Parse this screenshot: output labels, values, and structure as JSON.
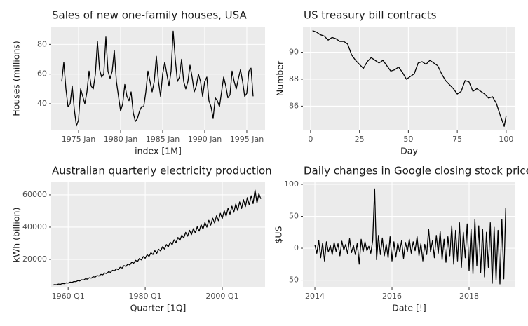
{
  "chart_data": [
    {
      "type": "line",
      "title": "Sales of new one-family houses, USA",
      "xlabel": "index [1M]",
      "ylabel": "Houses (millions)",
      "color": "#000000",
      "grid": true,
      "x": [
        1973,
        1973.25,
        1973.5,
        1973.75,
        1974,
        1974.25,
        1974.5,
        1974.75,
        1975,
        1975.25,
        1975.5,
        1975.75,
        1976,
        1976.25,
        1976.5,
        1976.75,
        1977,
        1977.25,
        1977.5,
        1977.75,
        1978,
        1978.25,
        1978.5,
        1978.75,
        1979,
        1979.25,
        1979.5,
        1979.75,
        1980,
        1980.25,
        1980.5,
        1980.75,
        1981,
        1981.25,
        1981.5,
        1981.75,
        1982,
        1982.25,
        1982.5,
        1982.75,
        1983,
        1983.25,
        1983.5,
        1983.75,
        1984,
        1984.25,
        1984.5,
        1984.75,
        1985,
        1985.25,
        1985.5,
        1985.75,
        1986,
        1986.25,
        1986.5,
        1986.75,
        1987,
        1987.25,
        1987.5,
        1987.75,
        1988,
        1988.25,
        1988.5,
        1988.75,
        1989,
        1989.25,
        1989.5,
        1989.75,
        1990,
        1990.25,
        1990.5,
        1990.75,
        1991,
        1991.25,
        1991.5,
        1991.75,
        1992,
        1992.25,
        1992.5,
        1992.75,
        1993,
        1993.25,
        1993.5,
        1993.75,
        1994,
        1994.25,
        1994.5,
        1994.75,
        1995,
        1995.25,
        1995.5,
        1995.75
      ],
      "values": [
        55,
        68,
        50,
        38,
        40,
        52,
        36,
        25,
        29,
        50,
        45,
        40,
        48,
        62,
        52,
        50,
        60,
        82,
        63,
        58,
        60,
        85,
        62,
        57,
        62,
        76,
        55,
        45,
        35,
        40,
        53,
        45,
        42,
        48,
        34,
        28,
        30,
        35,
        38,
        38,
        48,
        62,
        55,
        48,
        55,
        72,
        55,
        45,
        60,
        68,
        60,
        52,
        62,
        89,
        70,
        55,
        58,
        70,
        55,
        50,
        55,
        66,
        58,
        48,
        52,
        60,
        55,
        45,
        55,
        58,
        42,
        38,
        30,
        44,
        42,
        38,
        48,
        58,
        52,
        44,
        46,
        62,
        55,
        50,
        57,
        63,
        55,
        45,
        47,
        62,
        64,
        45
      ],
      "xlim": [
        1971.75,
        1997.17
      ],
      "xticks": [
        {
          "value": 1975,
          "label": "1975 Jan"
        },
        {
          "value": 1980,
          "label": "1980 Jan"
        },
        {
          "value": 1985,
          "label": "1985 Jan"
        },
        {
          "value": 1990,
          "label": "1990 Jan"
        },
        {
          "value": 1995,
          "label": "1995 Jan"
        }
      ],
      "ylim": [
        22,
        92
      ],
      "yticks": [
        40,
        60,
        80
      ]
    },
    {
      "type": "line",
      "title": "US treasury bill contracts",
      "xlabel": "Day",
      "ylabel": "Number",
      "color": "#000000",
      "grid": true,
      "x": [
        1,
        3,
        5,
        7,
        9,
        11,
        13,
        15,
        17,
        19,
        21,
        23,
        25,
        27,
        29,
        31,
        33,
        35,
        37,
        39,
        41,
        43,
        45,
        47,
        49,
        51,
        53,
        55,
        57,
        59,
        61,
        63,
        65,
        67,
        69,
        71,
        73,
        75,
        77,
        79,
        81,
        83,
        85,
        87,
        89,
        91,
        93,
        95,
        97,
        99,
        100
      ],
      "values": [
        91.6,
        91.5,
        91.3,
        91.2,
        90.9,
        91.1,
        91.0,
        90.8,
        90.8,
        90.6,
        89.8,
        89.4,
        89.1,
        88.8,
        89.3,
        89.6,
        89.4,
        89.2,
        89.4,
        89.0,
        88.6,
        88.7,
        88.9,
        88.5,
        88.0,
        88.2,
        88.4,
        89.2,
        89.3,
        89.1,
        89.4,
        89.2,
        89.0,
        88.4,
        87.9,
        87.6,
        87.3,
        86.9,
        87.1,
        87.9,
        87.8,
        87.1,
        87.3,
        87.1,
        86.9,
        86.6,
        86.7,
        86.2,
        85.3,
        84.5,
        85.3
      ],
      "xlim": [
        -3.9,
        104.7
      ],
      "xticks": [
        0,
        25,
        50,
        75,
        100
      ],
      "ylim": [
        84.2,
        91.9
      ],
      "yticks": [
        86,
        88,
        90
      ]
    },
    {
      "type": "line",
      "title": "Australian quarterly electricity production",
      "xlabel": "Quarter [1Q]",
      "ylabel": "kWh (billion)",
      "color": "#000000",
      "grid": true,
      "x": [
        1956,
        1956.5,
        1957,
        1957.5,
        1958,
        1958.5,
        1959,
        1959.5,
        1960,
        1960.5,
        1961,
        1961.5,
        1962,
        1962.5,
        1963,
        1963.5,
        1964,
        1964.5,
        1965,
        1965.5,
        1966,
        1966.5,
        1967,
        1967.5,
        1968,
        1968.5,
        1969,
        1969.5,
        1970,
        1970.5,
        1971,
        1971.5,
        1972,
        1972.5,
        1973,
        1973.5,
        1974,
        1974.5,
        1975,
        1975.5,
        1976,
        1976.5,
        1977,
        1977.5,
        1978,
        1978.5,
        1979,
        1979.5,
        1980,
        1980.5,
        1981,
        1981.5,
        1982,
        1982.5,
        1983,
        1983.5,
        1984,
        1984.5,
        1985,
        1985.5,
        1986,
        1986.5,
        1987,
        1987.5,
        1988,
        1988.5,
        1989,
        1989.5,
        1990,
        1990.5,
        1991,
        1991.5,
        1992,
        1992.5,
        1993,
        1993.5,
        1994,
        1994.5,
        1995,
        1995.5,
        1996,
        1996.5,
        1997,
        1997.5,
        1998,
        1998.5,
        1999,
        1999.5,
        2000,
        2000.5,
        2001,
        2001.5,
        2002,
        2002.5,
        2003,
        2003.5,
        2004,
        2004.5,
        2005,
        2005.5,
        2006,
        2006.5,
        2007,
        2007.5,
        2008,
        2008.5,
        2009,
        2009.5,
        2010
      ],
      "values": [
        3990,
        4410,
        4275,
        4725,
        4560,
        5040,
        4940,
        5460,
        5320,
        5880,
        5700,
        6300,
        6175,
        6825,
        6650,
        7350,
        7220,
        7980,
        7790,
        8610,
        8360,
        9240,
        9025,
        9975,
        9690,
        10710,
        10450,
        11550,
        11210,
        12390,
        11970,
        13230,
        12825,
        14175,
        13680,
        15120,
        14630,
        16170,
        15580,
        17220,
        16530,
        18270,
        17575,
        19425,
        18620,
        20580,
        19665,
        21735,
        20710,
        22890,
        21850,
        24150,
        22990,
        25410,
        23750,
        26250,
        25175,
        27825,
        26410,
        29190,
        27740,
        30660,
        29070,
        32130,
        30400,
        33600,
        31730,
        35070,
        33250,
        36750,
        34390,
        38010,
        35340,
        39060,
        36385,
        40215,
        37525,
        41475,
        38760,
        42840,
        39995,
        44205,
        41230,
        45570,
        42560,
        47040,
        43985,
        48615,
        45410,
        50190,
        46835,
        51765,
        47975,
        53025,
        49210,
        54390,
        50350,
        55650,
        51585,
        57015,
        52725,
        58275,
        53770,
        59430,
        54625,
        63000,
        54910,
        60690,
        57500
      ],
      "xlim": [
        1955.6,
        2011.1
      ],
      "xticks": [
        {
          "value": 1960,
          "label": "1960 Q1"
        },
        {
          "value": 1980,
          "label": "1980 Q1"
        },
        {
          "value": 2000,
          "label": "2000 Q1"
        }
      ],
      "ylim": [
        2600,
        67800
      ],
      "yticks": [
        20000,
        40000,
        60000
      ]
    },
    {
      "type": "line",
      "title": "Daily changes in Google closing stock price",
      "xlabel": "Date [!]",
      "ylabel": "$US",
      "color": "#000000",
      "grid": true,
      "x": [
        2014,
        2014.05,
        2014.1,
        2014.15,
        2014.2,
        2014.25,
        2014.3,
        2014.35,
        2014.4,
        2014.45,
        2014.5,
        2014.55,
        2014.6,
        2014.65,
        2014.7,
        2014.75,
        2014.8,
        2014.85,
        2014.9,
        2014.95,
        2015,
        2015.05,
        2015.1,
        2015.15,
        2015.2,
        2015.25,
        2015.3,
        2015.35,
        2015.4,
        2015.45,
        2015.5,
        2015.55,
        2015.6,
        2015.65,
        2015.7,
        2015.75,
        2015.8,
        2015.85,
        2015.9,
        2015.95,
        2016,
        2016.05,
        2016.1,
        2016.15,
        2016.2,
        2016.25,
        2016.3,
        2016.35,
        2016.4,
        2016.45,
        2016.5,
        2016.55,
        2016.6,
        2016.65,
        2016.7,
        2016.75,
        2016.8,
        2016.85,
        2016.9,
        2016.95,
        2017,
        2017.05,
        2017.1,
        2017.15,
        2017.2,
        2017.25,
        2017.3,
        2017.35,
        2017.4,
        2017.45,
        2017.5,
        2017.55,
        2017.6,
        2017.65,
        2017.7,
        2017.75,
        2017.8,
        2017.85,
        2017.9,
        2017.95,
        2018,
        2018.05,
        2018.1,
        2018.15,
        2018.2,
        2018.25,
        2018.3,
        2018.35,
        2018.4,
        2018.45,
        2018.5,
        2018.55,
        2018.6,
        2018.65,
        2018.7,
        2018.75,
        2018.8,
        2018.85,
        2018.9,
        2018.95
      ],
      "values": [
        5,
        -8,
        12,
        -15,
        8,
        -20,
        10,
        -6,
        4,
        -10,
        9,
        -5,
        7,
        -12,
        11,
        -3,
        6,
        -9,
        15,
        -7,
        4,
        -10,
        8,
        -25,
        14,
        -6,
        10,
        -4,
        3,
        -8,
        12,
        93,
        -18,
        20,
        -10,
        16,
        -12,
        6,
        -15,
        18,
        -20,
        10,
        -14,
        8,
        -6,
        12,
        -16,
        9,
        -5,
        14,
        -8,
        10,
        -4,
        18,
        -12,
        7,
        -20,
        6,
        -10,
        30,
        -6,
        12,
        -15,
        20,
        -8,
        26,
        -18,
        14,
        -22,
        18,
        -12,
        35,
        -25,
        28,
        -20,
        40,
        -30,
        25,
        -15,
        38,
        -35,
        30,
        -40,
        45,
        -28,
        35,
        -38,
        30,
        -45,
        25,
        -30,
        40,
        -55,
        33,
        -50,
        28,
        -56,
        45,
        -48,
        63
      ],
      "xlim": [
        2013.69,
        2019.2
      ],
      "xticks": [
        2014,
        2016,
        2018
      ],
      "ylim": [
        -61.5,
        103.3
      ],
      "yticks": [
        -50,
        0,
        50,
        100
      ]
    }
  ]
}
